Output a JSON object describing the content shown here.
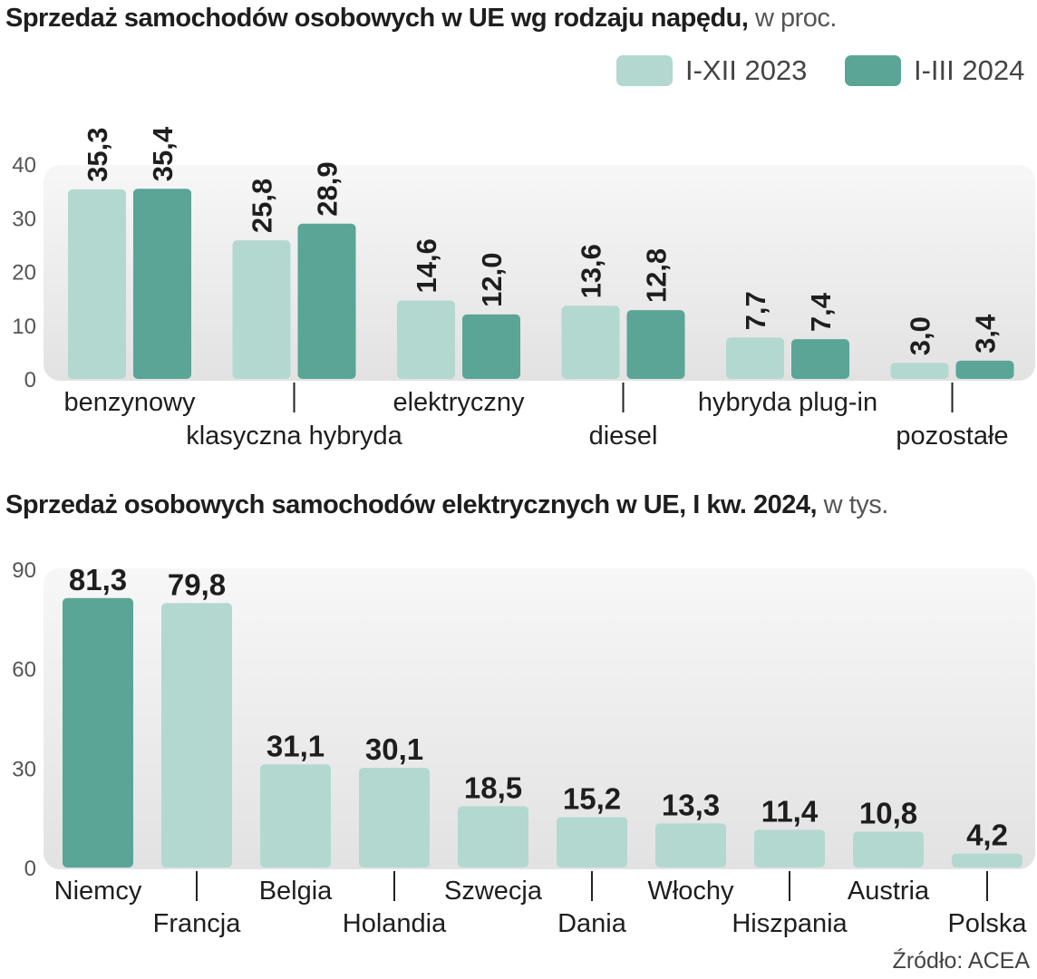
{
  "chart_data": [
    {
      "type": "bar",
      "title": "Sprzedaż samochodów osobowych w UE wg rodzaju napędu,",
      "title_suffix": "w proc.",
      "categories": [
        "benzynowy",
        "klasyczna hybryda",
        "elektryczny",
        "diesel",
        "hybryda plug-in",
        "pozostałe"
      ],
      "series": [
        {
          "name": "I-XII 2023",
          "color": "#b3d8d0",
          "values": [
            35.3,
            25.8,
            14.6,
            13.6,
            7.7,
            3.0
          ],
          "labels": [
            "35,3",
            "25,8",
            "14,6",
            "13,6",
            "7,7",
            "3,0"
          ]
        },
        {
          "name": "I-III 2024",
          "color": "#5aa595",
          "values": [
            35.4,
            28.9,
            12.0,
            12.8,
            7.4,
            3.4
          ],
          "labels": [
            "35,4",
            "28,9",
            "12,0",
            "12,8",
            "7,4",
            "3,4"
          ]
        }
      ],
      "yticks": [
        "0",
        "10",
        "20",
        "30",
        "40"
      ],
      "ylim": [
        0,
        40
      ],
      "legend_position": "top-right",
      "grid": false
    },
    {
      "type": "bar",
      "title": "Sprzedaż osobowych samochodów elektrycznych w UE, I kw. 2024,",
      "title_suffix": "w tys.",
      "categories": [
        "Niemcy",
        "Francja",
        "Belgia",
        "Holandia",
        "Szwecja",
        "Dania",
        "Włochy",
        "Hiszpania",
        "Austria",
        "Polska"
      ],
      "values": [
        81.3,
        79.8,
        31.1,
        30.1,
        18.5,
        15.2,
        13.3,
        11.4,
        10.8,
        4.2
      ],
      "labels": [
        "81,3",
        "79,8",
        "31,1",
        "30,1",
        "18,5",
        "15,2",
        "13,3",
        "11,4",
        "10,8",
        "4,2"
      ],
      "highlight_index": 0,
      "colors": {
        "bar": "#b3d8d0",
        "highlight": "#5aa595"
      },
      "yticks": [
        "0",
        "30",
        "60",
        "90"
      ],
      "ylim": [
        0,
        90
      ],
      "grid": false
    }
  ],
  "source": "Źródło: ACEA"
}
